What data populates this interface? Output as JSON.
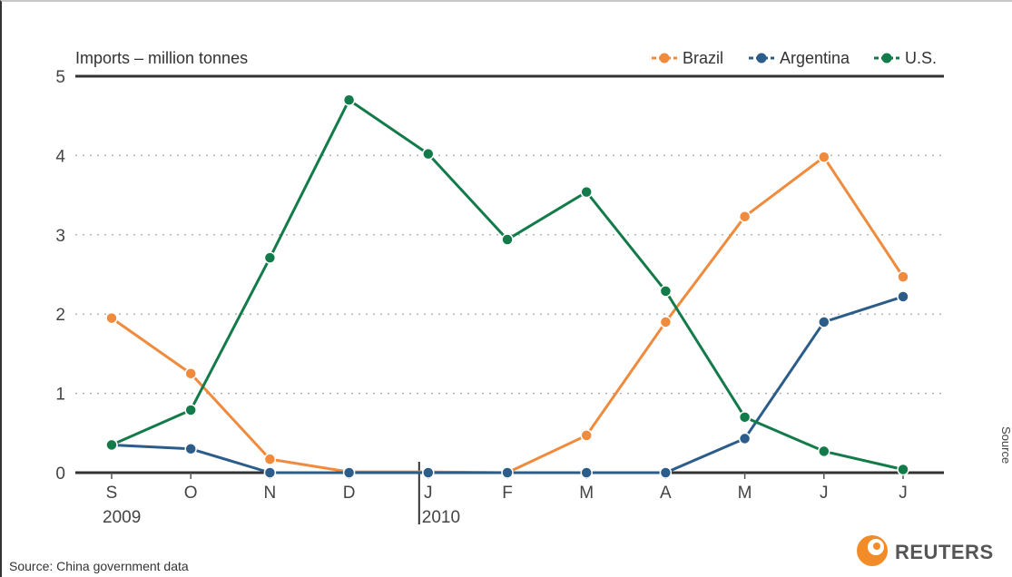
{
  "chart_data": {
    "type": "line",
    "title": "Imports – million tonnes",
    "categories": [
      "S",
      "O",
      "N",
      "D",
      "J",
      "F",
      "M",
      "A",
      "M",
      "J",
      "J"
    ],
    "year_labels": [
      "2009",
      "2010"
    ],
    "ylim": [
      0,
      5
    ],
    "yticks": [
      "0",
      "1",
      "2",
      "3",
      "4",
      "5"
    ],
    "grid": "dotted horizontal",
    "legend_position": "top-right",
    "series": [
      {
        "name": "Brazil",
        "color": "#f08a3c",
        "values": [
          1.95,
          1.25,
          0.17,
          0.01,
          0.01,
          0.0,
          0.47,
          1.9,
          3.23,
          3.98,
          2.47
        ]
      },
      {
        "name": "Argentina",
        "color": "#2c5d8a",
        "values": [
          0.35,
          0.3,
          0.0,
          0.0,
          0.0,
          0.0,
          0.0,
          0.0,
          0.43,
          1.9,
          2.22
        ]
      },
      {
        "name": "U.S.",
        "color": "#137a4a",
        "values": [
          0.35,
          0.79,
          2.71,
          4.7,
          4.02,
          2.94,
          3.54,
          2.29,
          0.7,
          0.27,
          0.04
        ]
      }
    ],
    "source": "Source: China government data",
    "brand": "REUTERS",
    "side_fragment": "Source"
  }
}
